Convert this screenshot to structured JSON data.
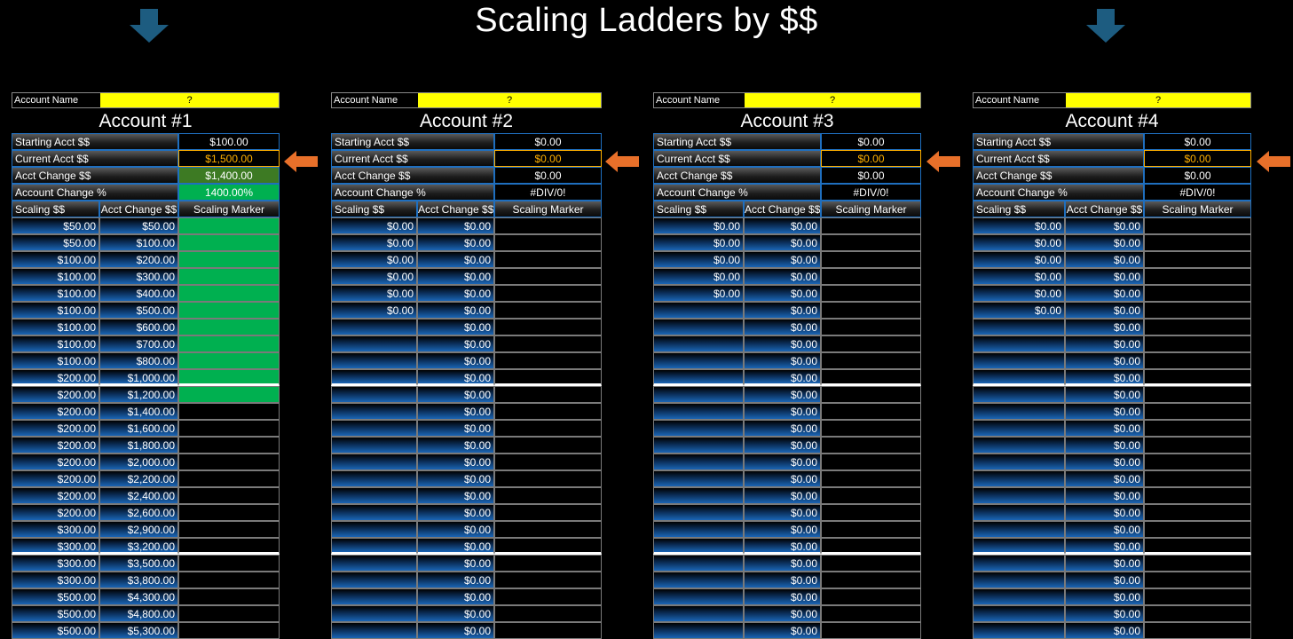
{
  "title": "Scaling Ladders by $$",
  "colors": {
    "accent_yellow": "#ffff00",
    "marker_green": "#00b050",
    "arrow_orange": "#e8702a",
    "arrow_blue": "#1d5c80"
  },
  "labels": {
    "account_name": "Account Name",
    "starting": "Starting Acct $$",
    "current": "Current Acct $$",
    "change": "Acct Change $$",
    "change_pct": "Account Change %",
    "col_scaling": "Scaling $$",
    "col_change": "Acct Change $$",
    "col_marker": "Scaling Marker"
  },
  "accounts": [
    {
      "name_value": "?",
      "title": "Account #1",
      "starting": "$100.00",
      "current": "$1,500.00",
      "change": "$1,400.00",
      "change_pct": "1400.00%",
      "scaling": [
        "$50.00",
        "$50.00",
        "$100.00",
        "$100.00",
        "$100.00",
        "$100.00",
        "$100.00",
        "$100.00",
        "$100.00",
        "$200.00",
        "$200.00",
        "$200.00",
        "$200.00",
        "$200.00",
        "$200.00",
        "$200.00",
        "$200.00",
        "$200.00",
        "$300.00",
        "$300.00",
        "$300.00",
        "$300.00",
        "$500.00",
        "$500.00",
        "$500.00"
      ],
      "acct_change": [
        "$50.00",
        "$100.00",
        "$200.00",
        "$300.00",
        "$400.00",
        "$500.00",
        "$600.00",
        "$700.00",
        "$800.00",
        "$1,000.00",
        "$1,200.00",
        "$1,400.00",
        "$1,600.00",
        "$1,800.00",
        "$2,000.00",
        "$2,200.00",
        "$2,400.00",
        "$2,600.00",
        "$2,900.00",
        "$3,200.00",
        "$3,500.00",
        "$3,800.00",
        "$4,300.00",
        "$4,800.00",
        "$5,300.00"
      ],
      "marker_on": 11
    },
    {
      "name_value": "?",
      "title": "Account #2",
      "starting": "$0.00",
      "current": "$0.00",
      "change": "$0.00",
      "change_pct": "#DIV/0!",
      "scaling": [
        "$0.00",
        "$0.00",
        "$0.00",
        "$0.00",
        "$0.00",
        "$0.00",
        "",
        "",
        "",
        "",
        "",
        "",
        "",
        "",
        "",
        "",
        "",
        "",
        "",
        "",
        "",
        "",
        "",
        "",
        ""
      ],
      "acct_change": [
        "$0.00",
        "$0.00",
        "$0.00",
        "$0.00",
        "$0.00",
        "$0.00",
        "$0.00",
        "$0.00",
        "$0.00",
        "$0.00",
        "$0.00",
        "$0.00",
        "$0.00",
        "$0.00",
        "$0.00",
        "$0.00",
        "$0.00",
        "$0.00",
        "$0.00",
        "$0.00",
        "$0.00",
        "$0.00",
        "$0.00",
        "$0.00",
        "$0.00"
      ],
      "marker_on": 0
    },
    {
      "name_value": "?",
      "title": "Account #3",
      "starting": "$0.00",
      "current": "$0.00",
      "change": "$0.00",
      "change_pct": "#DIV/0!",
      "scaling": [
        "$0.00",
        "$0.00",
        "$0.00",
        "$0.00",
        "$0.00",
        "",
        "",
        "",
        "",
        "",
        "",
        "",
        "",
        "",
        "",
        "",
        "",
        "",
        "",
        "",
        "",
        "",
        "",
        "",
        ""
      ],
      "acct_change": [
        "$0.00",
        "$0.00",
        "$0.00",
        "$0.00",
        "$0.00",
        "$0.00",
        "$0.00",
        "$0.00",
        "$0.00",
        "$0.00",
        "$0.00",
        "$0.00",
        "$0.00",
        "$0.00",
        "$0.00",
        "$0.00",
        "$0.00",
        "$0.00",
        "$0.00",
        "$0.00",
        "$0.00",
        "$0.00",
        "$0.00",
        "$0.00",
        "$0.00"
      ],
      "marker_on": 0
    },
    {
      "name_value": "?",
      "title": "Account #4",
      "starting": "$0.00",
      "current": "$0.00",
      "change": "$0.00",
      "change_pct": "#DIV/0!",
      "scaling": [
        "$0.00",
        "$0.00",
        "$0.00",
        "$0.00",
        "$0.00",
        "$0.00",
        "",
        "",
        "",
        "",
        "",
        "",
        "",
        "",
        "",
        "",
        "",
        "",
        "",
        "",
        "",
        "",
        "",
        "",
        ""
      ],
      "acct_change": [
        "$0.00",
        "$0.00",
        "$0.00",
        "$0.00",
        "$0.00",
        "$0.00",
        "$0.00",
        "$0.00",
        "$0.00",
        "$0.00",
        "$0.00",
        "$0.00",
        "$0.00",
        "$0.00",
        "$0.00",
        "$0.00",
        "$0.00",
        "$0.00",
        "$0.00",
        "$0.00",
        "$0.00",
        "$0.00",
        "$0.00",
        "$0.00",
        "$0.00"
      ],
      "marker_on": 0
    }
  ]
}
